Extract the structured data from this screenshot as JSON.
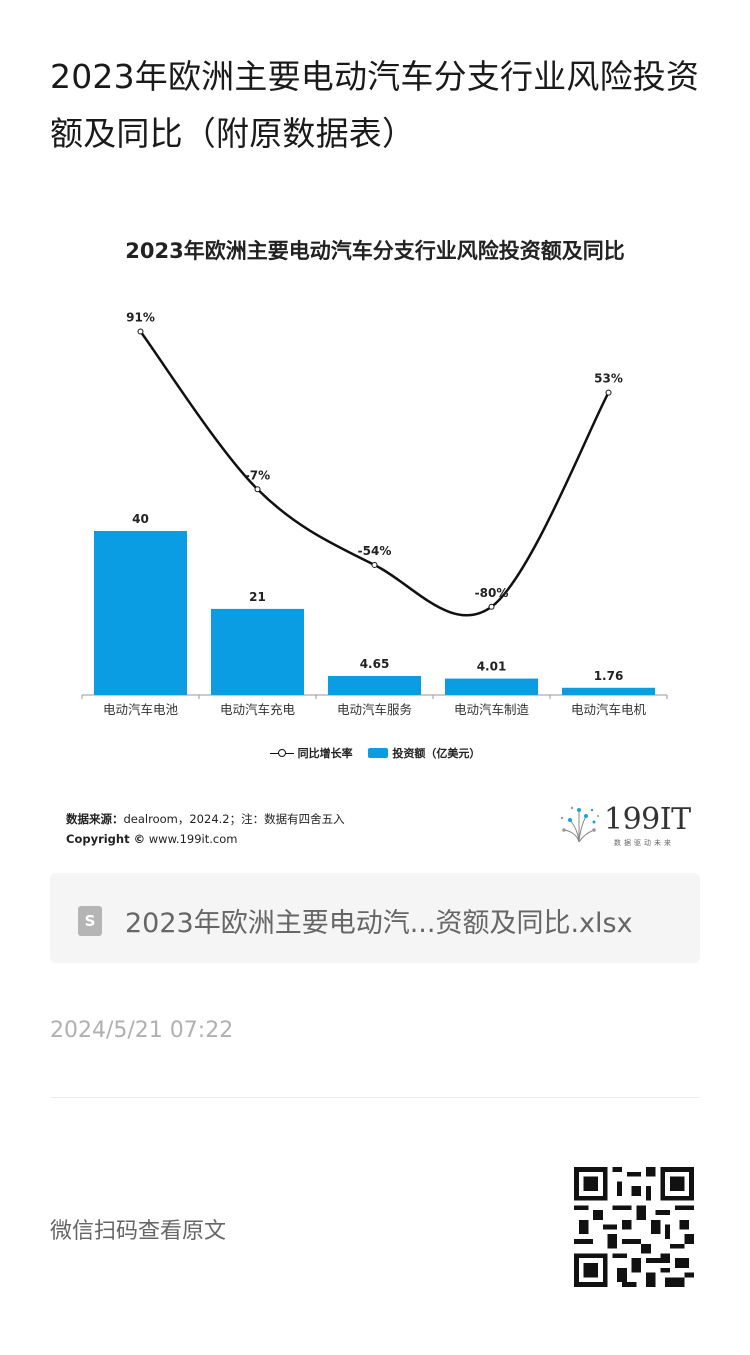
{
  "page": {
    "title": "2023年欧洲主要电动汽车分支行业风险投资额及同比（附原数据表）",
    "file_name": "2023年欧洲主要电动汽...资额及同比.xlsx",
    "file_icon": "S",
    "date": "2024/5/21 07:22",
    "qr_label": "微信扫码查看原文"
  },
  "source": {
    "label": "数据来源：",
    "text": "dealroom，2024.2；注：数据有四舍五入",
    "copyright_label": "Copyright ©",
    "copyright_text": "www.199it.com"
  },
  "logo": {
    "text": "199IT",
    "sub": "数据驱动未来"
  },
  "colors": {
    "bar": "#0a9de3",
    "line": "#111111"
  },
  "chart_data": {
    "type": "bar",
    "title": "2023年欧洲主要电动汽车分支行业风险投资额及同比",
    "categories": [
      "电动汽车电池",
      "电动汽车充电",
      "电动汽车服务",
      "电动汽车制造",
      "电动汽车电机"
    ],
    "series": [
      {
        "name": "投资额（亿美元）",
        "type": "bar",
        "values": [
          40,
          21,
          4.65,
          4.01,
          1.76
        ],
        "labels": [
          "40",
          "21",
          "4.65",
          "4.01",
          "1.76"
        ]
      },
      {
        "name": "同比增长率",
        "type": "line",
        "values": [
          91,
          -7,
          -54,
          -80,
          53
        ],
        "labels": [
          "91%",
          "-7%",
          "-54%",
          "-80%",
          "53%"
        ]
      }
    ],
    "legend_position": "bottom",
    "grid": false
  }
}
